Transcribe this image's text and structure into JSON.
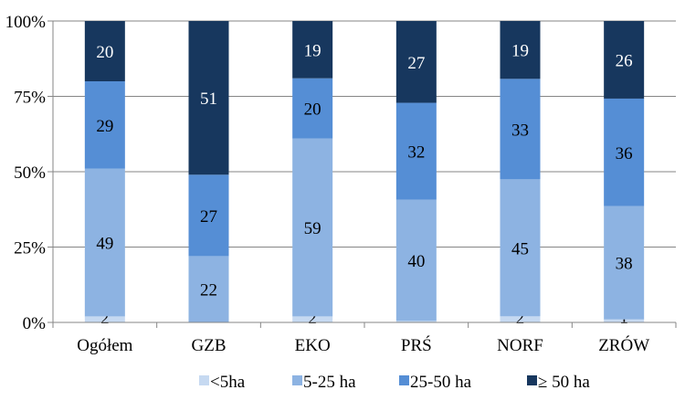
{
  "chart_data": {
    "type": "bar",
    "stacked": true,
    "percent": true,
    "categories": [
      "Ogółem",
      "GZB",
      "EKO",
      "PRŚ",
      "NORF",
      "ZRÓW"
    ],
    "series": [
      {
        "name": "<5ha",
        "color": "#c6d9f1",
        "values": [
          2,
          0,
          2,
          0.5,
          2,
          1
        ],
        "labels": [
          "2",
          "",
          "2",
          "",
          "2",
          "1"
        ]
      },
      {
        "name": "5-25 ha",
        "color": "#8db3e2",
        "values": [
          49,
          22,
          59,
          40,
          45,
          38
        ],
        "labels": [
          "49",
          "22",
          "59",
          "40",
          "45",
          "38"
        ]
      },
      {
        "name": "25-50 ha",
        "color": "#558ed5",
        "values": [
          29,
          27,
          20,
          32,
          33,
          36
        ],
        "labels": [
          "29",
          "27",
          "20",
          "32",
          "33",
          "36"
        ]
      },
      {
        "name": "≥ 50 ha",
        "color": "#17375e",
        "values": [
          20,
          51,
          19,
          27,
          19,
          26
        ],
        "labels": [
          "20",
          "51",
          "19",
          "27",
          "19",
          "26"
        ]
      }
    ],
    "yticks": [
      "0%",
      "25%",
      "50%",
      "75%",
      "100%"
    ],
    "ylim": [
      0,
      100
    ],
    "grid": true,
    "legend_position": "bottom"
  }
}
